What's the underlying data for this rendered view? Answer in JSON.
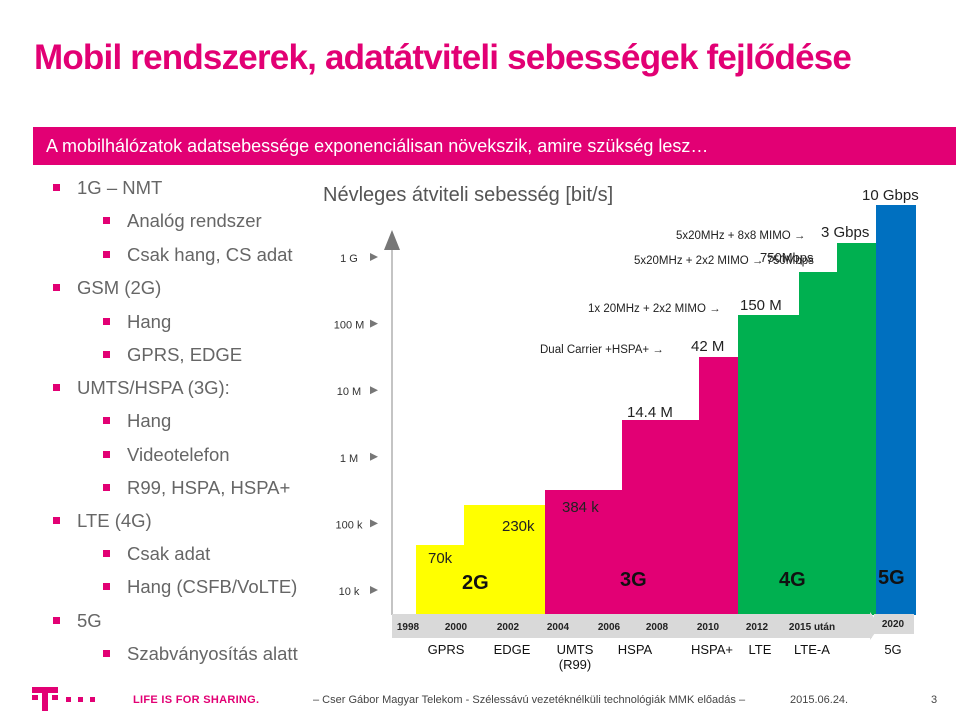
{
  "title": "Mobil rendszerek, adatátviteli sebességek fejlődése",
  "banner": "A mobilhálózatok adatsebessége exponenciálisan növekszik, amire szükség lesz…",
  "bullets": [
    {
      "level": 1,
      "text": "1G – NMT"
    },
    {
      "level": 2,
      "text": "Analóg rendszer"
    },
    {
      "level": 2,
      "text": "Csak hang, CS adat"
    },
    {
      "level": 1,
      "text": "GSM (2G)"
    },
    {
      "level": 2,
      "text": "Hang"
    },
    {
      "level": 2,
      "text": "GPRS, EDGE"
    },
    {
      "level": 1,
      "text": "UMTS/HSPA (3G):"
    },
    {
      "level": 2,
      "text": "Hang"
    },
    {
      "level": 2,
      "text": "Videotelefon"
    },
    {
      "level": 2,
      "text": "R99, HSPA, HSPA+"
    },
    {
      "level": 1,
      "text": "LTE (4G)"
    },
    {
      "level": 2,
      "text": "Csak adat"
    },
    {
      "level": 2,
      "text": "Hang (CSFB/VoLTE)"
    },
    {
      "level": 1,
      "text": "5G"
    },
    {
      "level": 2,
      "text": "Szabványosítás alatt"
    }
  ],
  "chart_data": {
    "type": "bar",
    "title": "Névleges átviteli sebesség [bit/s]",
    "y_scale": "log",
    "y_ticks": [
      "10 k",
      "100 k",
      "1 M",
      "10 M",
      "100 M",
      "1 G"
    ],
    "years": [
      "1998",
      "2000",
      "2002",
      "2004",
      "2006",
      "2008",
      "2010",
      "2012",
      "2015 után",
      "2020"
    ],
    "tech_labels": [
      {
        "label": "GPRS"
      },
      {
        "label": "EDGE"
      },
      {
        "label": "UMTS\n(R99)"
      },
      {
        "label": "HSPA"
      },
      {
        "label": "HSPA+"
      },
      {
        "label": "LTE"
      },
      {
        "label": "LTE-A"
      },
      {
        "label": "5G"
      }
    ],
    "bars": [
      {
        "name": "GPRS",
        "value_bps": 70000,
        "label": "70k",
        "color": "#ffff00",
        "gen": "2G"
      },
      {
        "name": "EDGE",
        "value_bps": 230000,
        "label": "230k",
        "color": "#ffff00"
      },
      {
        "name": "UMTS (R99)",
        "value_bps": 384000,
        "label": "384 k",
        "color": "#e20074",
        "gen": "3G"
      },
      {
        "name": "HSPA",
        "value_bps": 14400000,
        "label": "14.4 M",
        "color": "#e20074"
      },
      {
        "name": "HSPA+ Dual Carrier",
        "value_bps": 42000000,
        "label": "42 M",
        "color": "#e20074"
      },
      {
        "name": "LTE",
        "value_bps": 150000000,
        "label": "150 M",
        "color": "#00b050",
        "gen": "4G"
      },
      {
        "name": "LTE-A 2x2",
        "value_bps": 750000000,
        "label": "750Mbps",
        "color": "#00b050"
      },
      {
        "name": "LTE-A 8x8",
        "value_bps": 3000000000,
        "label": "3 Gbps",
        "color": "#00b050"
      },
      {
        "name": "5G",
        "value_bps": 10000000000,
        "label": "10 Gbps",
        "color": "#0070c0",
        "gen": "5G"
      }
    ],
    "annotations": [
      {
        "text": "Dual Carrier +HSPA+ →"
      },
      {
        "text": "1x 20MHz + 2x2 MIMO →"
      },
      {
        "text": "5x20MHz + 2x2 MIMO → 750Mbps"
      },
      {
        "text": "5x20MHz + 8x8 MIMO →"
      }
    ]
  },
  "footer": {
    "tagline": "LIFE IS FOR SHARING.",
    "credit": "– Cser Gábor Magyar Telekom - Szélessávú vezetéknélküli technológiák MMK előadás –",
    "date": "2015.06.24.",
    "page": "3"
  },
  "colors": {
    "brand": "#e20074",
    "yellow": "#ffff00",
    "green": "#00b050",
    "blue": "#0070c0"
  }
}
